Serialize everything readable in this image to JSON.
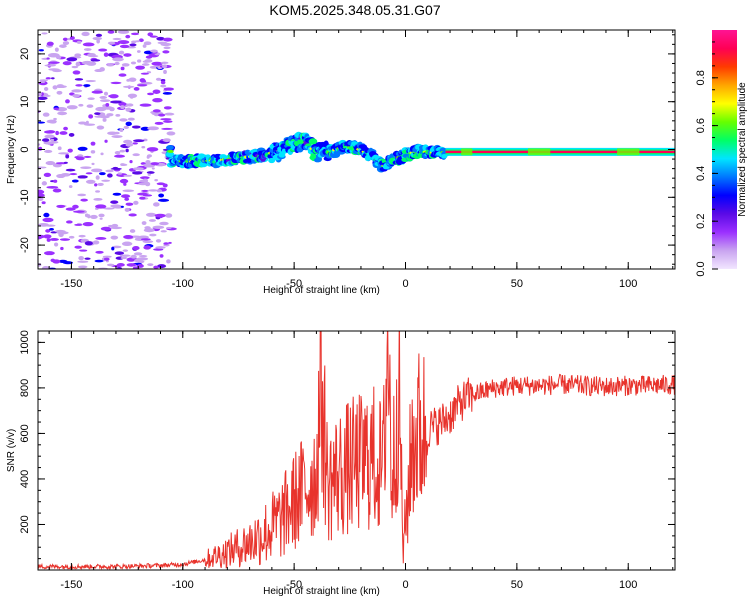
{
  "title": "KOM5.2025.348.05.31.G07",
  "chart_data": [
    {
      "type": "heatmap",
      "name": "spectrogram",
      "xlabel": "Height of straight line (km)",
      "ylabel": "Frequency (Hz)",
      "xlim": [
        -165,
        121
      ],
      "ylim": [
        -25,
        25
      ],
      "xticks": [
        -150,
        -100,
        -50,
        0,
        50,
        100
      ],
      "yticks": [
        -20,
        -10,
        0,
        10,
        20
      ],
      "colorbar": {
        "label": "Normalized spectral amplitude",
        "range": [
          0,
          1
        ],
        "ticks": [
          "0.0",
          "0.2",
          "0.4",
          "0.6",
          "0.8"
        ],
        "colors": [
          "#f2e6ff",
          "#c9a4f0",
          "#9b30ff",
          "#5a0ae6",
          "#0000ff",
          "#0077ff",
          "#00e5ff",
          "#00ff66",
          "#66ff00",
          "#ffff00",
          "#ffa500",
          "#ff3b00",
          "#ff0055",
          "#ff1493"
        ]
      },
      "ridge_frequency_hz": [
        {
          "x": -105,
          "y": -2.5
        },
        {
          "x": -95,
          "y": -2.5
        },
        {
          "x": -85,
          "y": -2.3
        },
        {
          "x": -75,
          "y": -1.8
        },
        {
          "x": -65,
          "y": -1.2
        },
        {
          "x": -58,
          "y": -0.5
        },
        {
          "x": -52,
          "y": 0.8
        },
        {
          "x": -46,
          "y": 2.0
        },
        {
          "x": -40,
          "y": -0.6
        },
        {
          "x": -34,
          "y": -0.5
        },
        {
          "x": -28,
          "y": 0.5
        },
        {
          "x": -22,
          "y": 0.3
        },
        {
          "x": -16,
          "y": -1.0
        },
        {
          "x": -10,
          "y": -3.5
        },
        {
          "x": -5,
          "y": -2.0
        },
        {
          "x": 0,
          "y": -1.2
        },
        {
          "x": 5,
          "y": -0.4
        },
        {
          "x": 12,
          "y": -0.6
        },
        {
          "x": 20,
          "y": -0.6
        },
        {
          "x": 50,
          "y": -0.5
        },
        {
          "x": 80,
          "y": -0.5
        },
        {
          "x": 121,
          "y": -0.4
        }
      ]
    },
    {
      "type": "line",
      "name": "snr",
      "xlabel": "Height of straight line (km)",
      "ylabel": "SNR (v/v)",
      "xlim": [
        -165,
        121
      ],
      "ylim": [
        0,
        1050
      ],
      "xticks": [
        -150,
        -100,
        -50,
        0,
        50,
        100
      ],
      "yticks": [
        200,
        400,
        600,
        800,
        1000
      ],
      "color": "#e8332c",
      "series": [
        {
          "name": "SNR",
          "x": [
            -165,
            -150,
            -130,
            -110,
            -100,
            -90,
            -80,
            -70,
            -62,
            -55,
            -50,
            -45,
            -40,
            -38,
            -35,
            -30,
            -25,
            -20,
            -15,
            -10,
            -8,
            -6,
            -3,
            -1,
            0,
            3,
            6,
            10,
            15,
            20,
            25,
            30,
            40,
            50,
            60,
            70,
            80,
            90,
            100,
            110,
            121
          ],
          "y": [
            15,
            15,
            15,
            20,
            25,
            45,
            80,
            120,
            170,
            230,
            300,
            360,
            420,
            840,
            380,
            420,
            450,
            470,
            500,
            440,
            1030,
            380,
            830,
            70,
            200,
            560,
            600,
            620,
            640,
            680,
            740,
            770,
            800,
            810,
            810,
            815,
            810,
            805,
            810,
            810,
            815
          ]
        }
      ]
    }
  ]
}
